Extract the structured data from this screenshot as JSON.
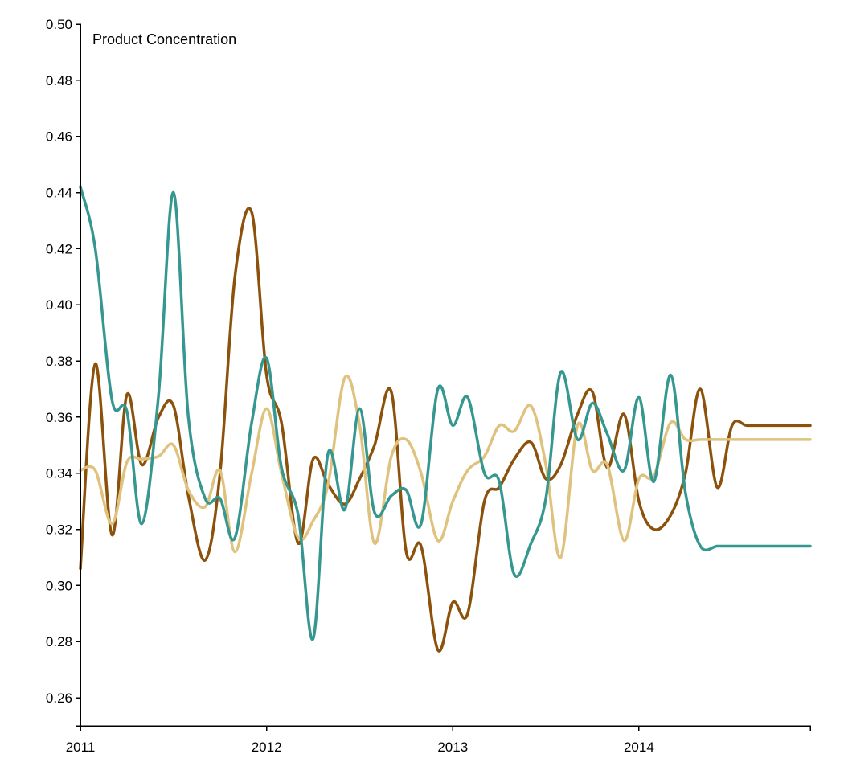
{
  "chart_data": {
    "type": "line",
    "title": "Product Concentration",
    "xlabel": "",
    "ylabel": "",
    "xlim": [
      2011.0,
      2014.92
    ],
    "ylim": [
      0.25,
      0.5
    ],
    "y_ticks": [
      "0.26",
      "0.28",
      "0.30",
      "0.32",
      "0.34",
      "0.36",
      "0.38",
      "0.40",
      "0.42",
      "0.44",
      "0.46",
      "0.48",
      "0.50"
    ],
    "x_ticks": [
      "2011",
      "2012",
      "2013",
      "2014"
    ],
    "grid": false,
    "legend": "none",
    "x": [
      2011.0,
      2011.08,
      2011.17,
      2011.25,
      2011.33,
      2011.42,
      2011.5,
      2011.58,
      2011.67,
      2011.75,
      2011.83,
      2011.92,
      2012.0,
      2012.08,
      2012.17,
      2012.25,
      2012.33,
      2012.42,
      2012.5,
      2012.58,
      2012.67,
      2012.75,
      2012.83,
      2012.92,
      2013.0,
      2013.08,
      2013.17,
      2013.25,
      2013.33,
      2013.42,
      2013.5,
      2013.58,
      2013.67,
      2013.75,
      2013.83,
      2013.92,
      2014.0,
      2014.08,
      2014.17,
      2014.25,
      2014.33,
      2014.42,
      2014.5,
      2014.58,
      2014.67,
      2014.75,
      2014.83,
      2014.92
    ],
    "series": [
      {
        "color": "#8c510a",
        "values": [
          0.306,
          0.379,
          0.318,
          0.368,
          0.343,
          0.36,
          0.364,
          0.332,
          0.309,
          0.34,
          0.41,
          0.433,
          0.375,
          0.358,
          0.315,
          0.345,
          0.336,
          0.329,
          0.338,
          0.35,
          0.369,
          0.312,
          0.314,
          0.277,
          0.294,
          0.29,
          0.33,
          0.335,
          0.345,
          0.351,
          0.338,
          0.343,
          0.361,
          0.369,
          0.342,
          0.361,
          0.33,
          0.32,
          0.325,
          0.34,
          0.37,
          0.335,
          0.357,
          0.357,
          0.357,
          0.357,
          0.357,
          0.357
        ]
      },
      {
        "color": "#dfc27d",
        "values": [
          0.341,
          0.341,
          0.322,
          0.344,
          0.345,
          0.346,
          0.35,
          0.334,
          0.328,
          0.341,
          0.312,
          0.34,
          0.363,
          0.34,
          0.317,
          0.323,
          0.336,
          0.374,
          0.357,
          0.315,
          0.346,
          0.352,
          0.34,
          0.316,
          0.33,
          0.341,
          0.346,
          0.357,
          0.355,
          0.364,
          0.343,
          0.31,
          0.357,
          0.341,
          0.343,
          0.316,
          0.338,
          0.339,
          0.358,
          0.352,
          0.352,
          0.352,
          0.352,
          0.352,
          0.352,
          0.352,
          0.352,
          0.352
        ]
      },
      {
        "color": "#35978f",
        "values": [
          0.442,
          0.42,
          0.366,
          0.362,
          0.322,
          0.368,
          0.44,
          0.36,
          0.331,
          0.331,
          0.317,
          0.358,
          0.381,
          0.342,
          0.325,
          0.281,
          0.347,
          0.327,
          0.363,
          0.326,
          0.332,
          0.334,
          0.322,
          0.37,
          0.357,
          0.367,
          0.34,
          0.337,
          0.304,
          0.315,
          0.331,
          0.376,
          0.352,
          0.365,
          0.354,
          0.341,
          0.367,
          0.337,
          0.375,
          0.333,
          0.314,
          0.314,
          0.314,
          0.314,
          0.314,
          0.314,
          0.314,
          0.314
        ]
      }
    ]
  }
}
